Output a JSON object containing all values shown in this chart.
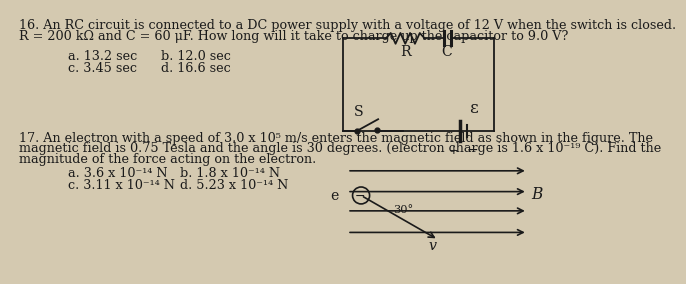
{
  "bg_color": "#d4c9b0",
  "q16_title": "16. An RC circuit is connected to a DC power supply with a voltage of 12 V when the switch is closed.",
  "q16_line2": "R = 200 kΩ and C = 60 μF. How long will it take to charge up the capacitor to 9.0 V?",
  "q16_a": "a. 13.2 sec",
  "q16_b": "b. 12.0 sec",
  "q16_c": "c. 3.45 sec",
  "q16_d": "d. 16.6 sec",
  "q17_title": "17. An electron with a speed of 3.0 x 10⁵ m/s enters the magnetic field as shown in the figure. The",
  "q17_line2": "magnetic field is 0.75 Tesla and the angle is 30 degrees. (electron charge is 1.6 x 10⁻¹⁹ C). Find the",
  "q17_line3": "magnitude of the force acting on the electron.",
  "q17_a": "a. 3.6 x 10⁻¹⁴ N",
  "q17_b": "b. 1.8 x 10⁻¹⁴ N",
  "q17_c": "c. 3.11 x 10⁻¹⁴ N",
  "q17_d": "d. 5.23 x 10⁻¹⁴ N",
  "text_color": "#1a1a1a",
  "font_size": 9.2
}
